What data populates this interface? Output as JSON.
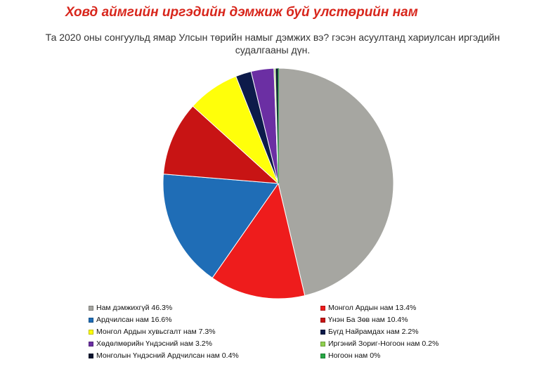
{
  "header": {
    "title": "Ховд аймгийн иргэдийн дэмжиж буй улстөрийн нам",
    "subtitle_lines": [
      "Та 2020 оны сонгуульд ямар Улсын төрийн намыг дэмжих вэ? гэсэн асуултанд хариулсан иргэдийн",
      "судалгааны дүн."
    ]
  },
  "chart_data": {
    "type": "pie",
    "title": "",
    "start_angle_deg": 0,
    "direction": "clockwise",
    "legend_position": "bottom",
    "slices": [
      {
        "label": "Нам дэмжихгүй",
        "value": 46.3,
        "color": "#a6a6a1",
        "legend_text": "Нам дэмжихгүй 46.3%"
      },
      {
        "label": "Монгол Ардын нам",
        "value": 13.4,
        "color": "#ee1c1c",
        "legend_text": "Монгол Ардын нам 13.4%"
      },
      {
        "label": "Ардчилсан нам",
        "value": 16.6,
        "color": "#1f6db6",
        "legend_text": "Ардчилсан нам 16.6%"
      },
      {
        "label": "Үнэн Ба Зөв нам",
        "value": 10.4,
        "color": "#c81414",
        "legend_text": "Үнэн Ба Зөв нам 10.4%"
      },
      {
        "label": "Монгол Ардын хувьсгалт нам",
        "value": 7.3,
        "color": "#ffff0a",
        "legend_text": "Монгол Ардын хувьсгалт нам 7.3%"
      },
      {
        "label": "Бүгд Найрамдах нам",
        "value": 2.2,
        "color": "#0d1b4a",
        "legend_text": "Бүгд Найрамдах нам 2.2%"
      },
      {
        "label": "Хөдөлмөрийн Үндэсний нам",
        "value": 3.2,
        "color": "#6b2fa3",
        "legend_text": "Хөдөлмөрийн Үндэсний нам 3.2%"
      },
      {
        "label": "Иргэний Зориг-Ногоон нам",
        "value": 0.2,
        "color": "#8fd14f",
        "legend_text": "Иргэний Зориг-Ногоон нам 0.2%"
      },
      {
        "label": "Монголын Үндэсний Ардчилсан нам",
        "value": 0.4,
        "color": "#0a1430",
        "legend_text": "Монголын Үндэсний Ардчилсан нам 0.4%"
      },
      {
        "label": "Ногоон нам",
        "value": 0.0,
        "color": "#27a844",
        "legend_text": "Ногоон нам 0%"
      }
    ],
    "legend_order": [
      0,
      1,
      2,
      3,
      4,
      5,
      6,
      7,
      8,
      9
    ]
  }
}
